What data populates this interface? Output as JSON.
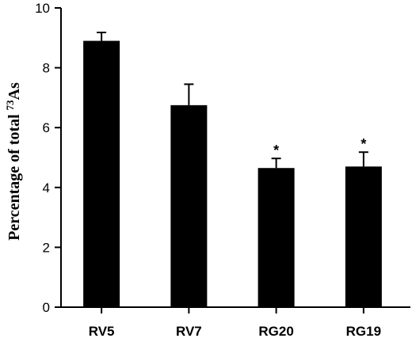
{
  "chart_data": {
    "type": "bar",
    "title": "",
    "xlabel": "",
    "ylabel": "Percentage of total ",
    "ylabel_sup": "73",
    "ylabel_tail": "As",
    "categories": [
      "RV5",
      "RV7",
      "RG20",
      "RG19"
    ],
    "values": [
      8.9,
      6.75,
      4.65,
      4.7
    ],
    "errors": [
      0.28,
      0.7,
      0.32,
      0.48
    ],
    "significant": [
      false,
      false,
      true,
      true
    ],
    "significance_marker": "*",
    "ylim": [
      0,
      10
    ],
    "yticks": [
      0,
      2,
      4,
      6,
      8,
      10
    ],
    "grid": false,
    "bar_color": "#000000"
  }
}
